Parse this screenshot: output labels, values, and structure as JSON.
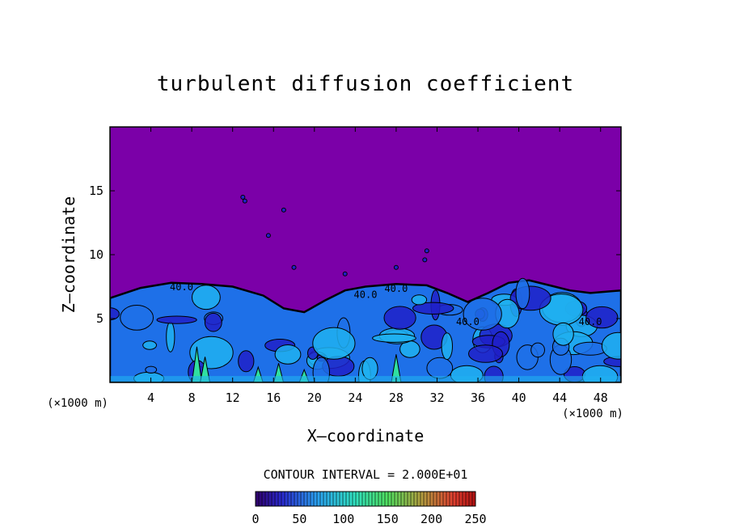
{
  "chart_data": {
    "type": "heatmap",
    "title": "turbulent diffusion coefficient",
    "xlabel": "X–coordinate",
    "ylabel": "Z–coordinate",
    "x_unit": "(×1000 m)",
    "z_unit": "(×1000 m)",
    "xlim": [
      0,
      50
    ],
    "ylim": [
      0,
      20
    ],
    "x_ticks": [
      4,
      8,
      12,
      16,
      20,
      24,
      28,
      32,
      36,
      40,
      44,
      48
    ],
    "y_ticks": [
      5,
      10,
      15
    ],
    "contour_interval_text": "CONTOUR INTERVAL = 2.000E+01",
    "contour_labels": [
      {
        "text": "40.0",
        "x": 7,
        "z": 7.2
      },
      {
        "text": "40.0",
        "x": 25,
        "z": 6.6
      },
      {
        "text": "40.0",
        "x": 28,
        "z": 7.1
      },
      {
        "text": "40.0",
        "x": 35,
        "z": 4.5
      },
      {
        "text": "40.0",
        "x": 47,
        "z": 4.5
      }
    ],
    "colorbar": {
      "min": 0,
      "max": 250,
      "tick_values": [
        0,
        50,
        100,
        150,
        200,
        250
      ],
      "tick_labels": [
        "0",
        "50",
        "100",
        "150",
        "200",
        "250"
      ]
    },
    "colors": {
      "background_field": "#7b00a8",
      "low": "#2020c8",
      "mid_low": "#1e70e8",
      "mid": "#20b0f0",
      "high": "#30e0a0",
      "peak": "#60f060"
    },
    "boundary_layer_top_z": [
      [
        0,
        6.6
      ],
      [
        3,
        7.4
      ],
      [
        6,
        7.8
      ],
      [
        9,
        7.7
      ],
      [
        12,
        7.5
      ],
      [
        15,
        6.8
      ],
      [
        17,
        5.8
      ],
      [
        19,
        5.5
      ],
      [
        21,
        6.4
      ],
      [
        23,
        7.2
      ],
      [
        25,
        7.5
      ],
      [
        28,
        7.7
      ],
      [
        31,
        7.6
      ],
      [
        33,
        7.0
      ],
      [
        35,
        6.3
      ],
      [
        37,
        7.0
      ],
      [
        39,
        7.8
      ],
      [
        41,
        8.0
      ],
      [
        43,
        7.6
      ],
      [
        45,
        7.2
      ],
      [
        47,
        7.0
      ],
      [
        50,
        7.2
      ]
    ]
  }
}
